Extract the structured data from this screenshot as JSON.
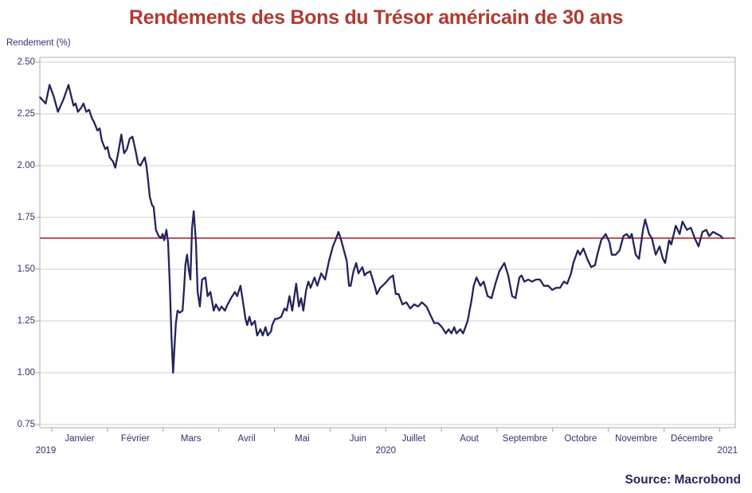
{
  "title": "Rendements des Bons du Trésor américain de 30 ans",
  "source_label": "Source: Macrobond",
  "colors": {
    "title": "#b23a31",
    "line": "#23235c",
    "reference": "#bf525a",
    "axis_text": "#31316e",
    "grid": "#cccccc",
    "frame": "#aeaeae",
    "tick": "#a4a4a4",
    "source_text": "#26265e",
    "background": "#ffffff"
  },
  "chart_data": {
    "type": "line",
    "title": "Rendements des Bons du Trésor américain de 30 ans",
    "ylabel": "Rendement (%)",
    "ylim": [
      0.75,
      2.5
    ],
    "grid": true,
    "legend": "none",
    "y_ticks": [
      {
        "value": 2.5,
        "label": "2.50"
      },
      {
        "value": 2.25,
        "label": "2.25"
      },
      {
        "value": 2.0,
        "label": "2.00"
      },
      {
        "value": 1.75,
        "label": "1.75"
      },
      {
        "value": 1.5,
        "label": "1.50"
      },
      {
        "value": 1.25,
        "label": "1.25"
      },
      {
        "value": 1.0,
        "label": "1.00"
      },
      {
        "value": 0.75,
        "label": "0.75"
      }
    ],
    "x_axis": {
      "months": [
        "Janvier",
        "Février",
        "Mars",
        "Avril",
        "Mai",
        "Juin",
        "Juillet",
        "Aout",
        "Septembre",
        "Octobre",
        "Novembre",
        "Décembre"
      ],
      "years": [
        "2019",
        "2020",
        "2021"
      ],
      "range_months": [
        -0.215,
        12.28
      ]
    },
    "reference_line": {
      "value": 1.65
    },
    "series": [
      {
        "name": "Rendement (%)",
        "x_unit": "months since 2020-01-01",
        "points": [
          [
            -0.21,
            2.33
          ],
          [
            -0.11,
            2.3
          ],
          [
            -0.04,
            2.39
          ],
          [
            0.04,
            2.33
          ],
          [
            0.11,
            2.26
          ],
          [
            0.21,
            2.32
          ],
          [
            0.3,
            2.39
          ],
          [
            0.39,
            2.29
          ],
          [
            0.43,
            2.3
          ],
          [
            0.47,
            2.26
          ],
          [
            0.53,
            2.28
          ],
          [
            0.57,
            2.3
          ],
          [
            0.62,
            2.26
          ],
          [
            0.67,
            2.27
          ],
          [
            0.72,
            2.23
          ],
          [
            0.76,
            2.21
          ],
          [
            0.82,
            2.17
          ],
          [
            0.86,
            2.18
          ],
          [
            0.9,
            2.12
          ],
          [
            0.96,
            2.08
          ],
          [
            1.0,
            2.09
          ],
          [
            1.04,
            2.04
          ],
          [
            1.1,
            2.02
          ],
          [
            1.14,
            1.99
          ],
          [
            1.2,
            2.07
          ],
          [
            1.25,
            2.15
          ],
          [
            1.3,
            2.06
          ],
          [
            1.35,
            2.08
          ],
          [
            1.4,
            2.13
          ],
          [
            1.45,
            2.14
          ],
          [
            1.5,
            2.08
          ],
          [
            1.55,
            2.01
          ],
          [
            1.59,
            2.0
          ],
          [
            1.63,
            2.02
          ],
          [
            1.67,
            2.04
          ],
          [
            1.7,
            2.0
          ],
          [
            1.73,
            1.93
          ],
          [
            1.76,
            1.85
          ],
          [
            1.8,
            1.81
          ],
          [
            1.83,
            1.8
          ],
          [
            1.87,
            1.69
          ],
          [
            1.92,
            1.66
          ],
          [
            1.96,
            1.65
          ],
          [
            1.99,
            1.67
          ],
          [
            2.02,
            1.64
          ],
          [
            2.06,
            1.69
          ],
          [
            2.09,
            1.63
          ],
          [
            2.12,
            1.43
          ],
          [
            2.15,
            1.18
          ],
          [
            2.18,
            1.0
          ],
          [
            2.2,
            1.1
          ],
          [
            2.23,
            1.24
          ],
          [
            2.26,
            1.3
          ],
          [
            2.3,
            1.29
          ],
          [
            2.35,
            1.3
          ],
          [
            2.38,
            1.42
          ],
          [
            2.4,
            1.52
          ],
          [
            2.43,
            1.57
          ],
          [
            2.46,
            1.5
          ],
          [
            2.49,
            1.45
          ],
          [
            2.52,
            1.7
          ],
          [
            2.55,
            1.78
          ],
          [
            2.59,
            1.63
          ],
          [
            2.62,
            1.39
          ],
          [
            2.66,
            1.32
          ],
          [
            2.7,
            1.45
          ],
          [
            2.76,
            1.46
          ],
          [
            2.8,
            1.37
          ],
          [
            2.85,
            1.39
          ],
          [
            2.91,
            1.3
          ],
          [
            2.95,
            1.33
          ],
          [
            3.01,
            1.3
          ],
          [
            3.05,
            1.32
          ],
          [
            3.11,
            1.3
          ],
          [
            3.16,
            1.33
          ],
          [
            3.22,
            1.36
          ],
          [
            3.29,
            1.39
          ],
          [
            3.33,
            1.37
          ],
          [
            3.39,
            1.42
          ],
          [
            3.43,
            1.35
          ],
          [
            3.48,
            1.26
          ],
          [
            3.51,
            1.23
          ],
          [
            3.55,
            1.27
          ],
          [
            3.59,
            1.23
          ],
          [
            3.65,
            1.25
          ],
          [
            3.69,
            1.18
          ],
          [
            3.75,
            1.21
          ],
          [
            3.79,
            1.18
          ],
          [
            3.84,
            1.22
          ],
          [
            3.88,
            1.18
          ],
          [
            3.94,
            1.2
          ],
          [
            3.96,
            1.23
          ],
          [
            4.01,
            1.26
          ],
          [
            4.05,
            1.26
          ],
          [
            4.12,
            1.27
          ],
          [
            4.18,
            1.31
          ],
          [
            4.22,
            1.3
          ],
          [
            4.27,
            1.37
          ],
          [
            4.32,
            1.3
          ],
          [
            4.39,
            1.43
          ],
          [
            4.44,
            1.32
          ],
          [
            4.48,
            1.36
          ],
          [
            4.52,
            1.3
          ],
          [
            4.57,
            1.4
          ],
          [
            4.61,
            1.44
          ],
          [
            4.65,
            1.41
          ],
          [
            4.72,
            1.46
          ],
          [
            4.77,
            1.42
          ],
          [
            4.84,
            1.48
          ],
          [
            4.91,
            1.45
          ],
          [
            4.98,
            1.54
          ],
          [
            5.05,
            1.61
          ],
          [
            5.11,
            1.65
          ],
          [
            5.15,
            1.68
          ],
          [
            5.2,
            1.64
          ],
          [
            5.22,
            1.62
          ],
          [
            5.3,
            1.54
          ],
          [
            5.34,
            1.42
          ],
          [
            5.37,
            1.42
          ],
          [
            5.42,
            1.49
          ],
          [
            5.47,
            1.53
          ],
          [
            5.51,
            1.48
          ],
          [
            5.58,
            1.51
          ],
          [
            5.62,
            1.47
          ],
          [
            5.65,
            1.48
          ],
          [
            5.72,
            1.49
          ],
          [
            5.8,
            1.42
          ],
          [
            5.84,
            1.38
          ],
          [
            5.9,
            1.41
          ],
          [
            5.98,
            1.43
          ],
          [
            6.08,
            1.46
          ],
          [
            6.13,
            1.47
          ],
          [
            6.18,
            1.38
          ],
          [
            6.23,
            1.38
          ],
          [
            6.3,
            1.33
          ],
          [
            6.37,
            1.34
          ],
          [
            6.44,
            1.31
          ],
          [
            6.51,
            1.33
          ],
          [
            6.58,
            1.32
          ],
          [
            6.65,
            1.34
          ],
          [
            6.73,
            1.32
          ],
          [
            6.8,
            1.28
          ],
          [
            6.87,
            1.24
          ],
          [
            6.94,
            1.24
          ],
          [
            7.01,
            1.22
          ],
          [
            7.08,
            1.19
          ],
          [
            7.13,
            1.21
          ],
          [
            7.18,
            1.19
          ],
          [
            7.23,
            1.22
          ],
          [
            7.27,
            1.19
          ],
          [
            7.34,
            1.21
          ],
          [
            7.39,
            1.19
          ],
          [
            7.47,
            1.25
          ],
          [
            7.54,
            1.35
          ],
          [
            7.58,
            1.42
          ],
          [
            7.63,
            1.46
          ],
          [
            7.7,
            1.42
          ],
          [
            7.76,
            1.44
          ],
          [
            7.83,
            1.37
          ],
          [
            7.9,
            1.36
          ],
          [
            7.97,
            1.43
          ],
          [
            8.04,
            1.49
          ],
          [
            8.13,
            1.53
          ],
          [
            8.2,
            1.47
          ],
          [
            8.27,
            1.37
          ],
          [
            8.33,
            1.36
          ],
          [
            8.4,
            1.46
          ],
          [
            8.44,
            1.47
          ],
          [
            8.49,
            1.44
          ],
          [
            8.56,
            1.45
          ],
          [
            8.63,
            1.44
          ],
          [
            8.7,
            1.45
          ],
          [
            8.77,
            1.45
          ],
          [
            8.84,
            1.42
          ],
          [
            8.92,
            1.42
          ],
          [
            8.99,
            1.4
          ],
          [
            9.06,
            1.41
          ],
          [
            9.13,
            1.41
          ],
          [
            9.2,
            1.44
          ],
          [
            9.26,
            1.43
          ],
          [
            9.33,
            1.48
          ],
          [
            9.37,
            1.53
          ],
          [
            9.45,
            1.59
          ],
          [
            9.49,
            1.57
          ],
          [
            9.55,
            1.6
          ],
          [
            9.62,
            1.55
          ],
          [
            9.69,
            1.51
          ],
          [
            9.76,
            1.52
          ],
          [
            9.8,
            1.57
          ],
          [
            9.87,
            1.64
          ],
          [
            9.95,
            1.67
          ],
          [
            10.02,
            1.63
          ],
          [
            10.06,
            1.57
          ],
          [
            10.13,
            1.57
          ],
          [
            10.2,
            1.59
          ],
          [
            10.27,
            1.66
          ],
          [
            10.33,
            1.67
          ],
          [
            10.38,
            1.65
          ],
          [
            10.42,
            1.67
          ],
          [
            10.49,
            1.57
          ],
          [
            10.55,
            1.55
          ],
          [
            10.62,
            1.69
          ],
          [
            10.66,
            1.74
          ],
          [
            10.73,
            1.67
          ],
          [
            10.78,
            1.65
          ],
          [
            10.85,
            1.57
          ],
          [
            10.92,
            1.61
          ],
          [
            10.98,
            1.55
          ],
          [
            11.02,
            1.53
          ],
          [
            11.09,
            1.64
          ],
          [
            11.13,
            1.62
          ],
          [
            11.21,
            1.71
          ],
          [
            11.28,
            1.67
          ],
          [
            11.33,
            1.73
          ],
          [
            11.41,
            1.69
          ],
          [
            11.48,
            1.7
          ],
          [
            11.55,
            1.65
          ],
          [
            11.62,
            1.61
          ],
          [
            11.69,
            1.68
          ],
          [
            11.76,
            1.69
          ],
          [
            11.81,
            1.66
          ],
          [
            11.88,
            1.68
          ],
          [
            11.95,
            1.67
          ],
          [
            12.02,
            1.66
          ],
          [
            12.05,
            1.65
          ]
        ]
      }
    ]
  }
}
